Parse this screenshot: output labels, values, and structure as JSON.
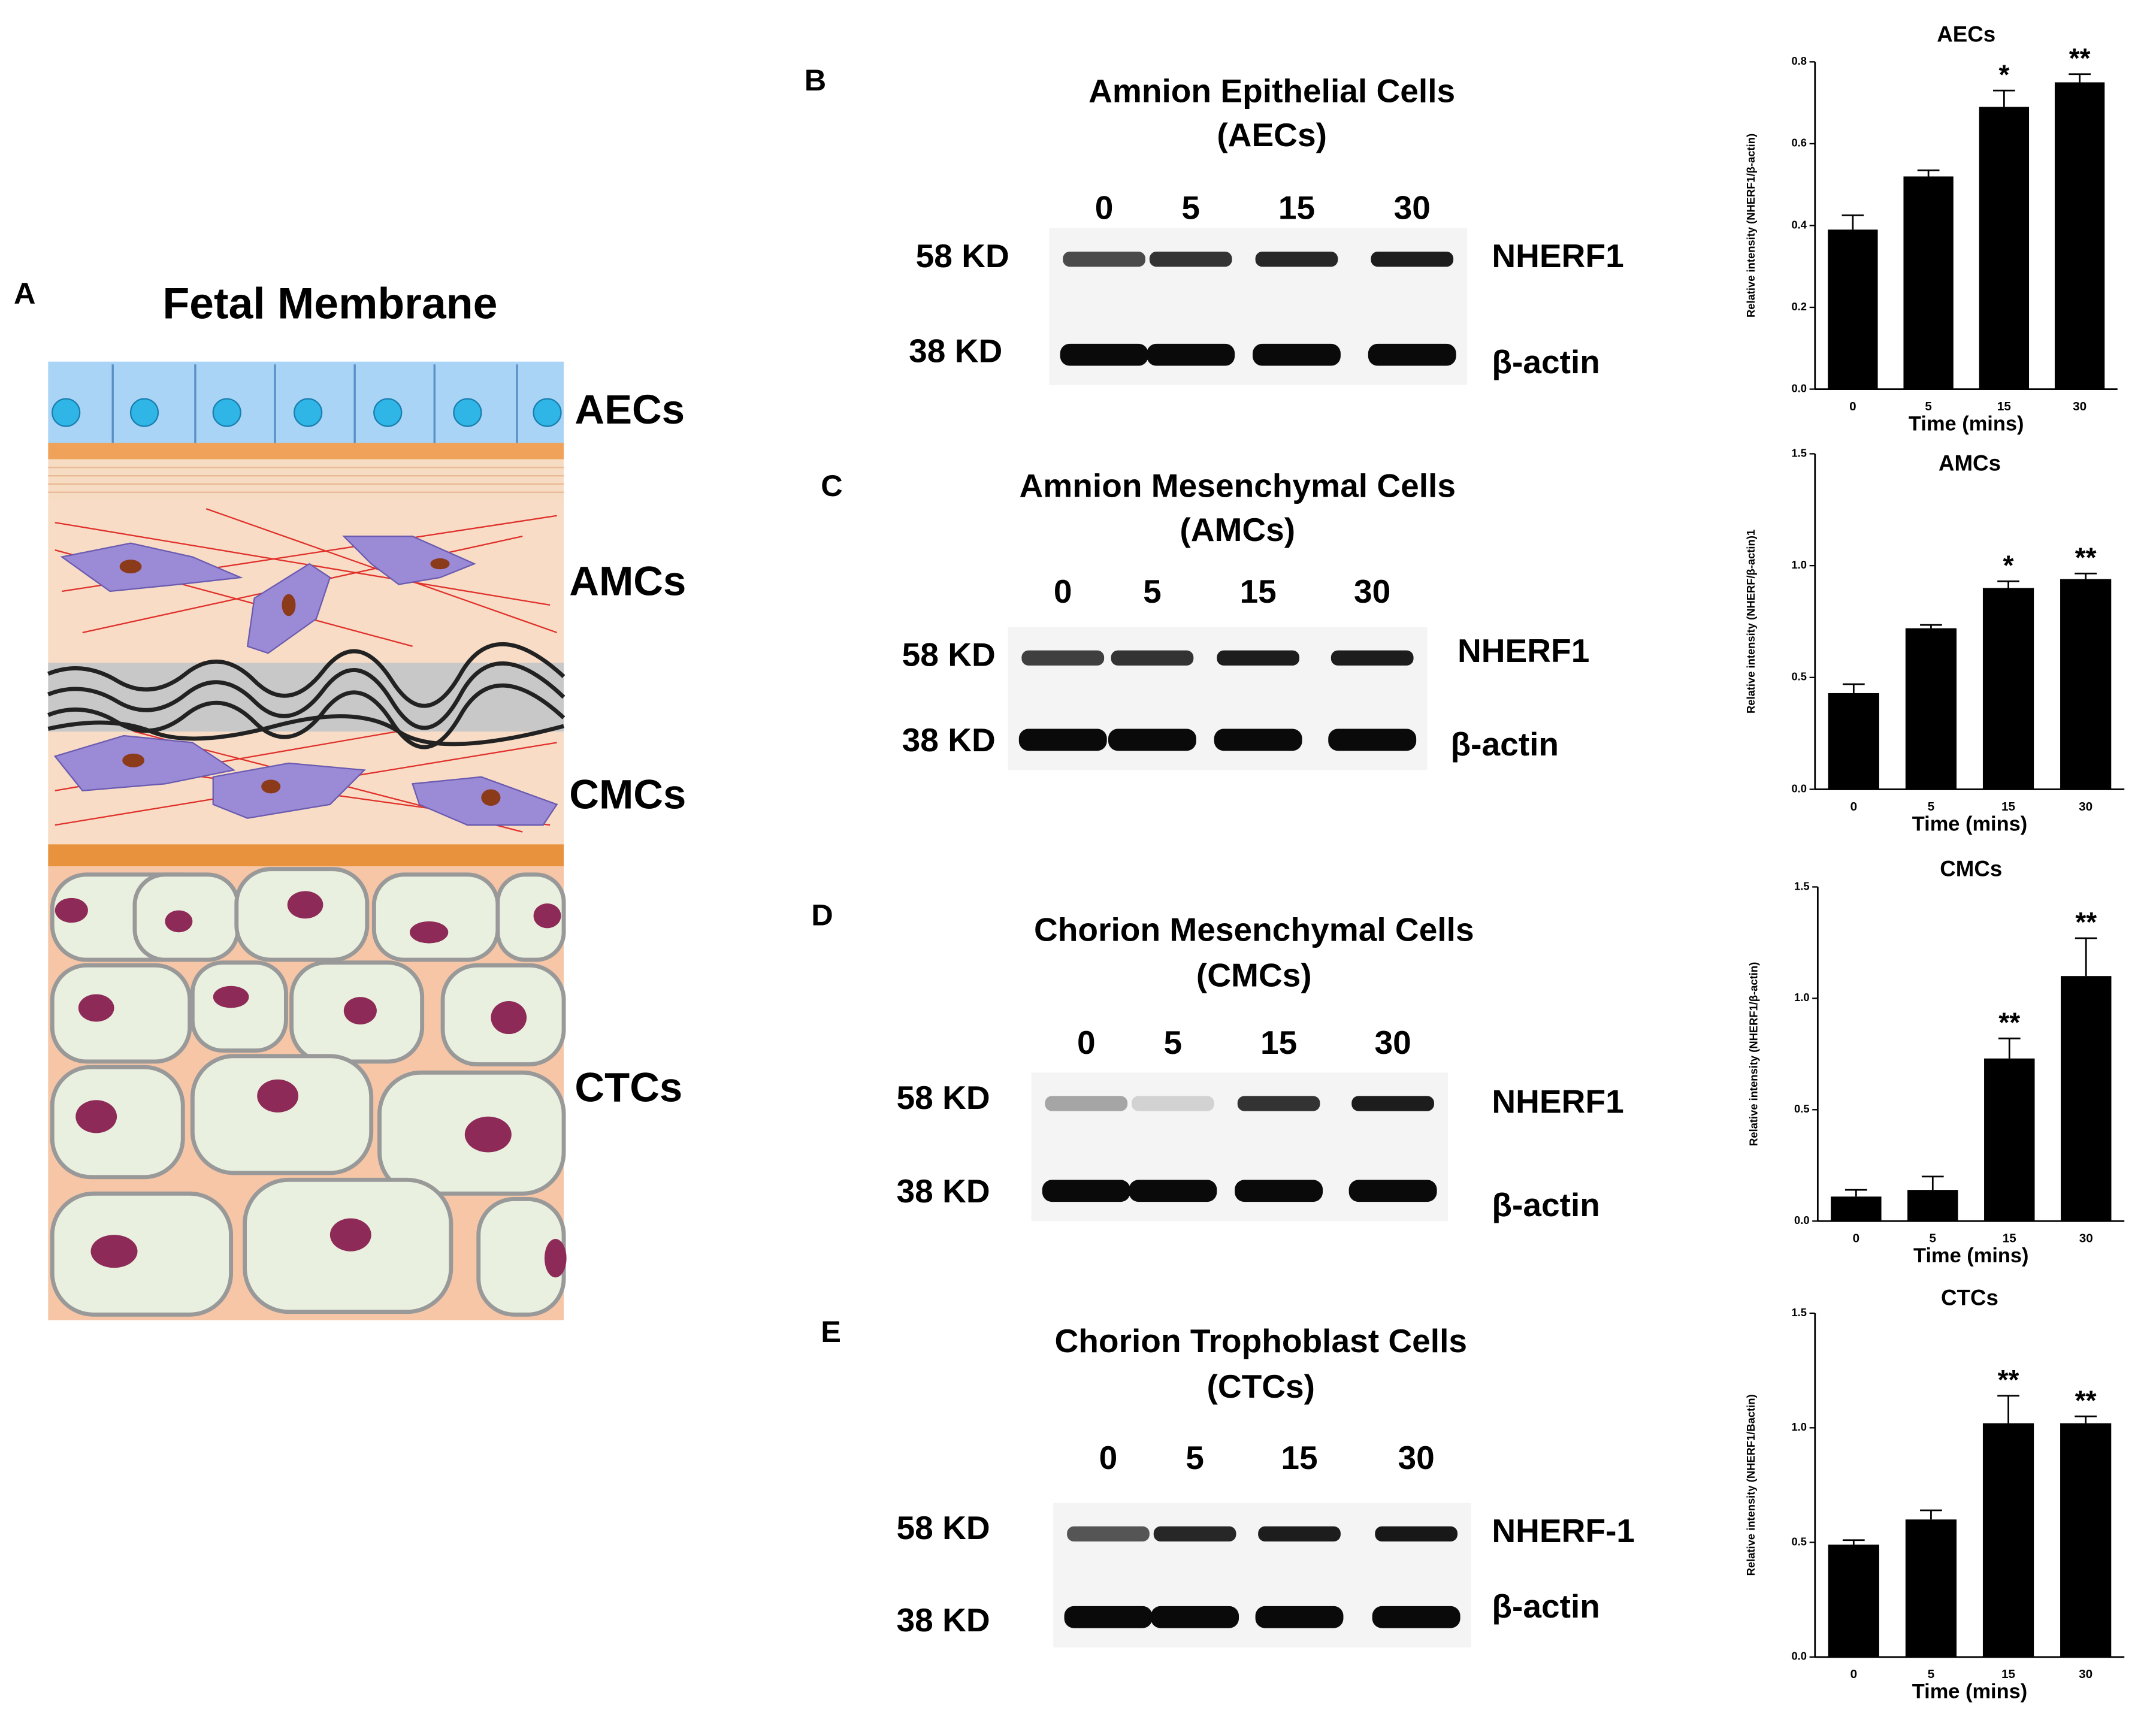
{
  "diagram": {
    "letter": "A",
    "title": "Fetal Membrane",
    "layers": [
      "AECs",
      "AMCs",
      "CMCs",
      "CTCs"
    ]
  },
  "panels": [
    {
      "letter": "B",
      "title": [
        "Amnion Epithelial Cells",
        "(AECs)"
      ],
      "lanes": [
        "0",
        "5",
        "15",
        "30"
      ],
      "markers": [
        "58 KD",
        "38 KD"
      ],
      "proteins": [
        "NHERF1",
        "β-actin"
      ]
    },
    {
      "letter": "C",
      "title": [
        "Amnion Mesenchymal Cells",
        "(AMCs)"
      ],
      "lanes": [
        "0",
        "5",
        "15",
        "30"
      ],
      "markers": [
        "58 KD",
        "38 KD"
      ],
      "proteins": [
        "NHERF1",
        "β-actin"
      ]
    },
    {
      "letter": "D",
      "title": [
        "Chorion Mesenchymal Cells",
        "(CMCs)"
      ],
      "lanes": [
        "0",
        "5",
        "15",
        "30"
      ],
      "markers": [
        "58 KD",
        "38 KD"
      ],
      "proteins": [
        "NHERF1",
        "β-actin"
      ]
    },
    {
      "letter": "E",
      "title": [
        "Chorion Trophoblast Cells",
        "(CTCs)"
      ],
      "lanes": [
        "0",
        "5",
        "15",
        "30"
      ],
      "markers": [
        "58 KD",
        "38 KD"
      ],
      "proteins": [
        "NHERF-1",
        "β-actin"
      ]
    }
  ],
  "chart_data": [
    {
      "type": "bar",
      "title": "AECs",
      "x_label": "Time (mins)",
      "y_label": "Relative intensity (NHERF1/β-actin)",
      "categories": [
        "0",
        "5",
        "15",
        "30"
      ],
      "values": [
        0.39,
        0.52,
        0.69,
        0.75
      ],
      "errors": [
        0.035,
        0.015,
        0.04,
        0.02
      ],
      "color": "#000000",
      "annotations": [
        {
          "category": "15",
          "text": "*"
        },
        {
          "category": "30",
          "text": "**"
        }
      ],
      "ylim": [
        0,
        0.8
      ],
      "yticks": [
        {
          "value": 0,
          "label": "0.0"
        },
        0.2,
        0.4,
        0.6,
        0.8
      ]
    },
    {
      "type": "bar",
      "title": "AMCs",
      "x_label": "Time (mins)",
      "y_label": "Relative intensity (NHERF/β-actin)1",
      "categories": [
        "0",
        "5",
        "15",
        "30"
      ],
      "values": [
        0.43,
        0.72,
        0.9,
        0.94
      ],
      "errors": [
        0.04,
        0.015,
        0.03,
        0.025
      ],
      "color": "#000000",
      "annotations": [
        {
          "category": "15",
          "text": "*"
        },
        {
          "category": "30",
          "text": "**"
        }
      ],
      "ylim": [
        0,
        1.5
      ],
      "yticks": [
        {
          "value": 0,
          "label": "0.0"
        },
        0.5,
        {
          "value": 1,
          "label": "1.0"
        },
        1.5
      ]
    },
    {
      "type": "bar",
      "title": "CMCs",
      "x_label": "Time (mins)",
      "y_label": "Relative intensity (NHERF1/β-actin)",
      "categories": [
        "0",
        "5",
        "15",
        "30"
      ],
      "values": [
        0.11,
        0.14,
        0.73,
        1.1
      ],
      "errors": [
        0.03,
        0.06,
        0.09,
        0.17
      ],
      "color": "#000000",
      "annotations": [
        {
          "category": "15",
          "text": "**"
        },
        {
          "category": "30",
          "text": "**"
        }
      ],
      "ylim": [
        0,
        1.5
      ],
      "yticks": [
        {
          "value": 0,
          "label": "0.0"
        },
        0.5,
        {
          "value": 1,
          "label": "1.0"
        },
        1.5
      ]
    },
    {
      "type": "bar",
      "title": "CTCs",
      "x_label": "Time (mins)",
      "y_label": "Relative intensity (NHERF1/Bactin)",
      "categories": [
        "0",
        "5",
        "15",
        "30"
      ],
      "values": [
        0.49,
        0.6,
        1.02,
        1.02
      ],
      "errors": [
        0.02,
        0.04,
        0.12,
        0.03
      ],
      "color": "#000000",
      "annotations": [
        {
          "category": "15",
          "text": "**"
        },
        {
          "category": "30",
          "text": "**"
        }
      ],
      "ylim": [
        0,
        1.5
      ],
      "yticks": [
        {
          "value": 0,
          "label": "0.0"
        },
        0.5,
        {
          "value": 1,
          "label": "1.0"
        },
        1.5
      ]
    }
  ]
}
